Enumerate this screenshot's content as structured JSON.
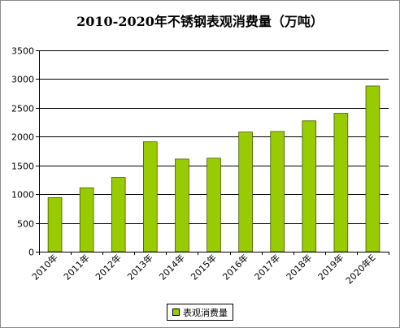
{
  "chart_data": {
    "type": "bar",
    "title": "2010-2020年不锈钢表观消费量（万吨）",
    "categories": [
      "2010年",
      "2011年",
      "2012年",
      "2013年",
      "2014年",
      "2015年",
      "2016年",
      "2017年",
      "2018年",
      "2019年",
      "2020年E"
    ],
    "series": [
      {
        "name": "表观消费量",
        "values": [
          940,
          1110,
          1290,
          1910,
          1610,
          1625,
          2080,
          2090,
          2275,
          2405,
          2880
        ]
      }
    ],
    "ylim": [
      0,
      3500
    ],
    "yticks": [
      0,
      500,
      1000,
      1500,
      2000,
      2500,
      3000,
      3500
    ],
    "grid": true,
    "legend": "bottom",
    "colors": {
      "bar": "#99cc00",
      "bar_edge": "#3f5a00",
      "grid": "#000000"
    }
  }
}
